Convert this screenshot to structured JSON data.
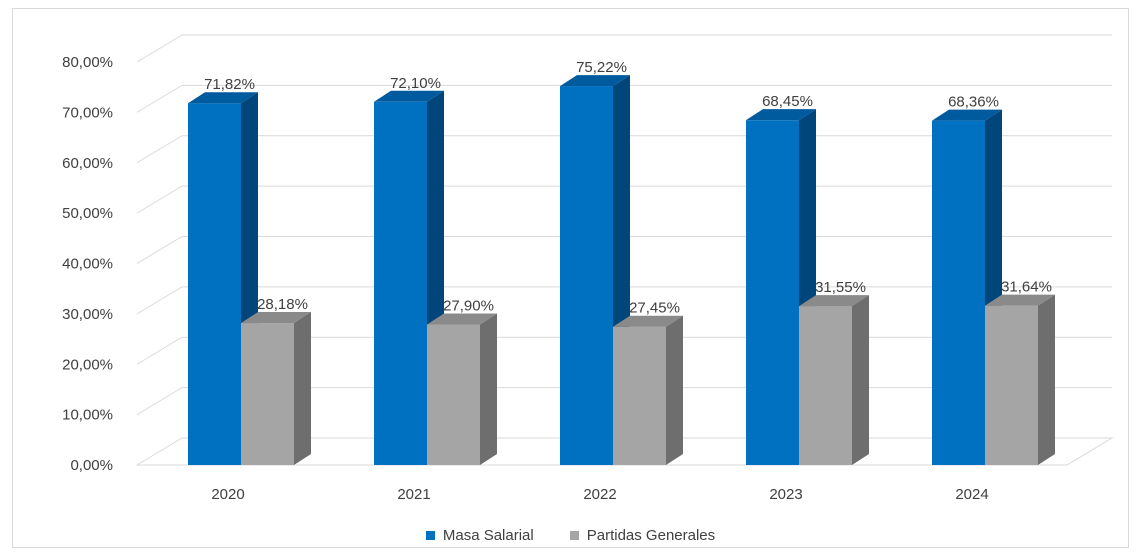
{
  "chart_data": {
    "type": "bar",
    "categories": [
      "2020",
      "2021",
      "2022",
      "2023",
      "2024"
    ],
    "series": [
      {
        "name": "Masa Salarial",
        "values": [
          71.82,
          72.1,
          75.22,
          68.45,
          68.36
        ],
        "labels": [
          "71,82%",
          "72,10%",
          "75,22%",
          "68,45%",
          "68,36%"
        ],
        "color": "#0070C0",
        "side_color": "#00467A",
        "top_color": "#005A9E"
      },
      {
        "name": "Partidas Generales",
        "values": [
          28.18,
          27.9,
          27.45,
          31.55,
          31.64
        ],
        "labels": [
          "28,18%",
          "27,90%",
          "27,45%",
          "31,55%",
          "31,64%"
        ],
        "color": "#A5A5A5",
        "side_color": "#6E6E6E",
        "top_color": "#8A8A8A"
      }
    ],
    "y_ticks": [
      "0,00%",
      "10,00%",
      "20,00%",
      "30,00%",
      "40,00%",
      "50,00%",
      "60,00%",
      "70,00%",
      "80,00%"
    ],
    "ylim": [
      0,
      80
    ],
    "grid": true,
    "legend_position": "bottom",
    "style": "3d-clustered-column"
  }
}
